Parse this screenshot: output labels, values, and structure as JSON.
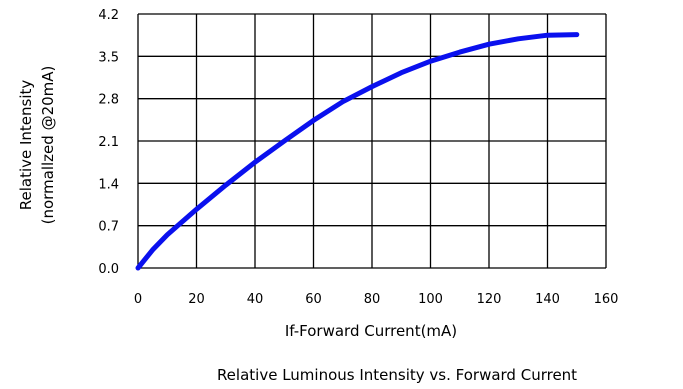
{
  "chart_data": {
    "type": "line",
    "title": "Relative Luminous Intensity vs. Forward Current",
    "xlabel": "If-Forward Current(mA)",
    "ylabel_lines": [
      "Relative Intensity",
      "(normallzed @20mA)"
    ],
    "xlim": [
      0,
      160
    ],
    "ylim": [
      0.0,
      4.2
    ],
    "x_ticks": [
      "0",
      "20",
      "40",
      "60",
      "80",
      "100",
      "120",
      "140",
      "160"
    ],
    "y_ticks": [
      "0.0",
      "0.7",
      "1.4",
      "2.1",
      "2.8",
      "3.5",
      "4.2"
    ],
    "grid": true,
    "series": [
      {
        "color": "#0a10ee",
        "x": [
          0,
          5,
          10,
          20,
          30,
          40,
          50,
          60,
          70,
          80,
          90,
          100,
          110,
          120,
          130,
          140,
          150
        ],
        "y": [
          0.0,
          0.3,
          0.55,
          0.97,
          1.37,
          1.75,
          2.1,
          2.44,
          2.75,
          3.0,
          3.23,
          3.42,
          3.57,
          3.7,
          3.79,
          3.85,
          3.86
        ]
      }
    ]
  }
}
